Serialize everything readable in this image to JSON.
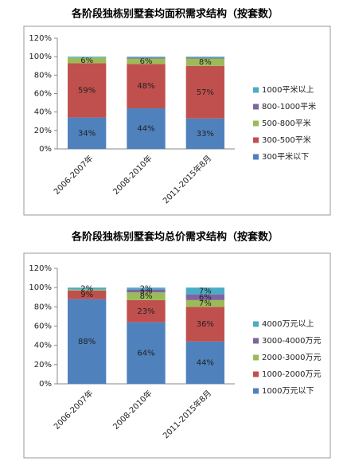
{
  "chart_data": [
    {
      "type": "stacked_bar",
      "title": "各阶段独栋别墅套均面积需求结构（按套数）",
      "categories": [
        "2006-2007年",
        "2008-2010年",
        "2011-2015年8月"
      ],
      "series": [
        {
          "name": "300平米以下",
          "color": "#4f81bd",
          "values": [
            34,
            44,
            33
          ],
          "value_labels": [
            "34%",
            "44%",
            "33%"
          ]
        },
        {
          "name": "300-500平米",
          "color": "#c0504d",
          "values": [
            59,
            48,
            57
          ],
          "value_labels": [
            "59%",
            "48%",
            "57%"
          ]
        },
        {
          "name": "500-800平米",
          "color": "#9bbb59",
          "values": [
            6,
            6,
            8
          ],
          "value_labels": [
            "6%",
            "6%",
            "8%"
          ]
        },
        {
          "name": "800-1000平米",
          "color": "#8064a2",
          "values": [
            0,
            1,
            1
          ],
          "value_labels": [
            null,
            null,
            null
          ]
        },
        {
          "name": "1000平米以上",
          "color": "#4bacc6",
          "values": [
            1,
            1,
            1
          ],
          "value_labels": [
            null,
            null,
            null
          ]
        }
      ],
      "ylim": [
        0,
        120
      ],
      "yticks": [
        {
          "value": 0,
          "label": "0%"
        },
        {
          "value": 20,
          "label": "20%"
        },
        {
          "value": 40,
          "label": "40%"
        },
        {
          "value": 60,
          "label": "60%"
        },
        {
          "value": 80,
          "label": "80%"
        },
        {
          "value": 100,
          "label": "100%"
        },
        {
          "value": 120,
          "label": "120%"
        }
      ],
      "grid": false,
      "legend": "right"
    },
    {
      "type": "stacked_bar",
      "title": "各阶段独栋别墅套均总价需求结构（按套数）",
      "categories": [
        "2006-2007年",
        "2008-2010年",
        "2011-2015年8月"
      ],
      "series": [
        {
          "name": "1000万元以下",
          "color": "#4f81bd",
          "values": [
            88,
            64,
            44
          ],
          "value_labels": [
            "88%",
            "64%",
            "44%"
          ]
        },
        {
          "name": "1000-2000万元",
          "color": "#c0504d",
          "values": [
            9,
            23,
            36
          ],
          "value_labels": [
            "9%",
            "23%",
            "36%"
          ]
        },
        {
          "name": "2000-3000万元",
          "color": "#9bbb59",
          "values": [
            1,
            8,
            7
          ],
          "value_labels": [
            null,
            "8%",
            "7%"
          ]
        },
        {
          "name": "3000-4000万元",
          "color": "#8064a2",
          "values": [
            0,
            3,
            6
          ],
          "value_labels": [
            null,
            "3%",
            "6%"
          ]
        },
        {
          "name": "4000万元以上",
          "color": "#4bacc6",
          "values": [
            2,
            2,
            7
          ],
          "value_labels": [
            "2%",
            "2%",
            "7%"
          ]
        }
      ],
      "ylim": [
        0,
        120
      ],
      "yticks": [
        {
          "value": 0,
          "label": "0%"
        },
        {
          "value": 20,
          "label": "20%"
        },
        {
          "value": 40,
          "label": "40%"
        },
        {
          "value": 60,
          "label": "60%"
        },
        {
          "value": 80,
          "label": "80%"
        },
        {
          "value": 100,
          "label": "100%"
        },
        {
          "value": 120,
          "label": "120%"
        }
      ],
      "grid": false,
      "legend": "right"
    }
  ]
}
